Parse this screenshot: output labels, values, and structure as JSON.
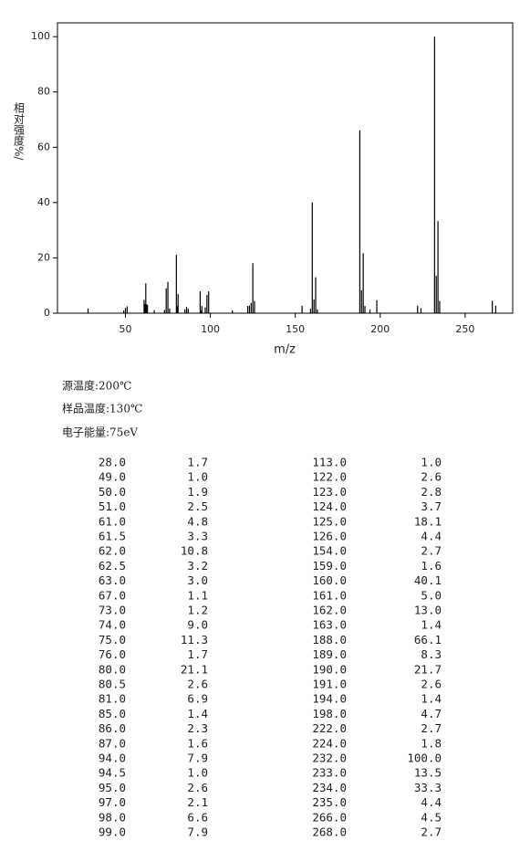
{
  "chart_data": {
    "type": "bar",
    "y_label": "相对强度%/",
    "x_label": "m/z",
    "x": [
      28,
      49,
      50,
      51,
      61,
      61.5,
      62,
      62.5,
      63,
      67,
      73,
      74,
      75,
      76,
      80,
      80.5,
      81,
      85,
      86,
      87,
      94,
      94.5,
      95,
      97,
      98,
      99,
      113,
      122,
      123,
      124,
      125,
      126,
      154,
      159,
      160,
      161,
      162,
      163,
      188,
      189,
      190,
      191,
      194,
      198,
      222,
      224,
      232,
      233,
      234,
      235,
      266,
      268
    ],
    "values": [
      1.7,
      1.0,
      1.9,
      2.5,
      4.8,
      3.3,
      10.8,
      3.2,
      3.0,
      1.1,
      1.2,
      9.0,
      11.3,
      1.7,
      21.1,
      2.6,
      6.9,
      1.4,
      2.3,
      1.6,
      7.9,
      1.0,
      2.6,
      2.1,
      6.6,
      7.9,
      1.0,
      2.6,
      2.8,
      3.7,
      18.1,
      4.4,
      2.7,
      1.6,
      40.1,
      5.0,
      13.0,
      1.4,
      66.1,
      8.3,
      21.7,
      2.6,
      1.4,
      4.7,
      2.7,
      1.8,
      100.0,
      13.5,
      33.3,
      4.4,
      4.5,
      2.7
    ],
    "color": "#000000",
    "xlim": [
      10,
      278
    ],
    "xticks": [
      50,
      100,
      150,
      200,
      250
    ],
    "ylim": [
      0,
      105
    ],
    "yticks": [
      0,
      20,
      40,
      60,
      80,
      100
    ]
  },
  "info": [
    "源温度:200℃",
    "样品温度:130℃",
    "电子能量:75eV"
  ],
  "table": {
    "rows": [
      [
        "28.0",
        "1.7",
        "113.0",
        "1.0"
      ],
      [
        "49.0",
        "1.0",
        "122.0",
        "2.6"
      ],
      [
        "50.0",
        "1.9",
        "123.0",
        "2.8"
      ],
      [
        "51.0",
        "2.5",
        "124.0",
        "3.7"
      ],
      [
        "61.0",
        "4.8",
        "125.0",
        "18.1"
      ],
      [
        "61.5",
        "3.3",
        "126.0",
        "4.4"
      ],
      [
        "62.0",
        "10.8",
        "154.0",
        "2.7"
      ],
      [
        "62.5",
        "3.2",
        "159.0",
        "1.6"
      ],
      [
        "63.0",
        "3.0",
        "160.0",
        "40.1"
      ],
      [
        "67.0",
        "1.1",
        "161.0",
        "5.0"
      ],
      [
        "73.0",
        "1.2",
        "162.0",
        "13.0"
      ],
      [
        "74.0",
        "9.0",
        "163.0",
        "1.4"
      ],
      [
        "75.0",
        "11.3",
        "188.0",
        "66.1"
      ],
      [
        "76.0",
        "1.7",
        "189.0",
        "8.3"
      ],
      [
        "80.0",
        "21.1",
        "190.0",
        "21.7"
      ],
      [
        "80.5",
        "2.6",
        "191.0",
        "2.6"
      ],
      [
        "81.0",
        "6.9",
        "194.0",
        "1.4"
      ],
      [
        "85.0",
        "1.4",
        "198.0",
        "4.7"
      ],
      [
        "86.0",
        "2.3",
        "222.0",
        "2.7"
      ],
      [
        "87.0",
        "1.6",
        "224.0",
        "1.8"
      ],
      [
        "94.0",
        "7.9",
        "232.0",
        "100.0"
      ],
      [
        "94.5",
        "1.0",
        "233.0",
        "13.5"
      ],
      [
        "95.0",
        "2.6",
        "234.0",
        "33.3"
      ],
      [
        "97.0",
        "2.1",
        "235.0",
        "4.4"
      ],
      [
        "98.0",
        "6.6",
        "266.0",
        "4.5"
      ],
      [
        "99.0",
        "7.9",
        "268.0",
        "2.7"
      ]
    ]
  }
}
